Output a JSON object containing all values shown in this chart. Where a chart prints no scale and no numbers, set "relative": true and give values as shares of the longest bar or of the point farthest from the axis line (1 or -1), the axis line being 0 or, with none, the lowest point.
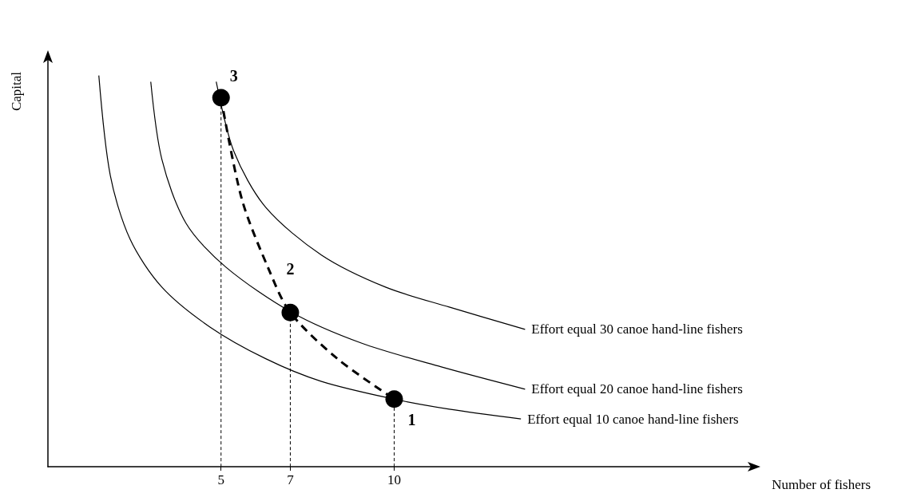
{
  "chart_data": {
    "type": "line",
    "relative": true,
    "xlabel": "Number of fishers",
    "ylabel": "Capital",
    "xlim": [
      0,
      20.3
    ],
    "xticks": [
      5,
      7,
      10
    ],
    "legend": false,
    "grid": false,
    "series": [
      {
        "name": "Effort equal 10 canoe hand-line fishers",
        "color": "#000000",
        "marker": "none",
        "line_style": "solid",
        "x": [
          1.47,
          1.8,
          2.37,
          3.29,
          4.68,
          6.29,
          7.9,
          9.98,
          11.59,
          13.66
        ],
        "values": [
          1.0,
          0.745,
          0.582,
          0.459,
          0.357,
          0.276,
          0.218,
          0.173,
          0.147,
          0.122
        ]
      },
      {
        "name": "Effort equal 20 canoe hand-line fishers",
        "color": "#000000",
        "marker": "none",
        "line_style": "solid",
        "x": [
          2.97,
          3.29,
          3.99,
          5.14,
          7.05,
          9.05,
          11.36,
          13.78
        ],
        "values": [
          0.984,
          0.786,
          0.622,
          0.51,
          0.394,
          0.316,
          0.255,
          0.198
        ]
      },
      {
        "name": "Effort equal 30 canoe hand-line fishers",
        "color": "#000000",
        "marker": "none",
        "line_style": "solid",
        "x": [
          4.86,
          5.37,
          6.29,
          7.9,
          9.75,
          11.59,
          13.78
        ],
        "values": [
          0.984,
          0.806,
          0.663,
          0.541,
          0.459,
          0.408,
          0.351
        ]
      },
      {
        "color": "#000000",
        "marker": "none",
        "line_style": "dotted",
        "x": [
          5,
          5
        ],
        "values": [
          0,
          0.943
        ]
      },
      {
        "color": "#000000",
        "marker": "none",
        "line_style": "dotted",
        "x": [
          7,
          7
        ],
        "values": [
          0,
          0.394
        ]
      },
      {
        "color": "#000000",
        "marker": "none",
        "line_style": "dotted",
        "x": [
          10,
          10
        ],
        "values": [
          0,
          0.173
        ]
      },
      {
        "color": "#000000",
        "marker": "none",
        "line_style": "dashed",
        "x": [
          5,
          5.6,
          6.4,
          7,
          8.36,
          10
        ],
        "values": [
          0.943,
          0.684,
          0.5,
          0.394,
          0.276,
          0.173
        ]
      },
      {
        "type": "scatter",
        "color": "#000000",
        "marker": "circle",
        "x": [
          5,
          7,
          10
        ],
        "values": [
          0.943,
          0.394,
          0.173
        ]
      }
    ],
    "annotations": [
      "3",
      "2",
      "1"
    ]
  }
}
